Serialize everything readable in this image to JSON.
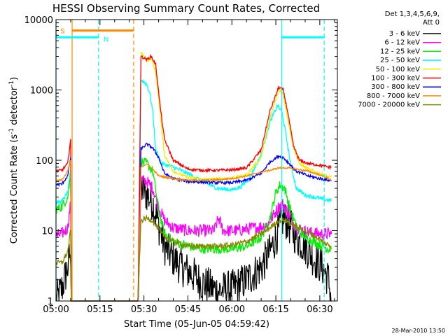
{
  "chart_data": {
    "type": "line",
    "title": "HESSI Observing Summary Count Rates, Corrected",
    "xlabel": "Start Time (05-Jun-05 04:59:42)",
    "ylabel_main": "Corrected Count Rate (s",
    "ylabel_sup1": "-1",
    "ylabel_mid": " detector",
    "ylabel_sup2": "-1",
    "ylabel_end": ")",
    "timestamp": "28-Mar-2010 13:50",
    "legend_header": [
      "Det 1,3,4,5,6,9,",
      "Att 0"
    ],
    "legend_placement": "right",
    "y_scale": "log",
    "ylim": [
      1,
      10000
    ],
    "xlim_minutes": [
      0,
      96
    ],
    "x_ticks": [
      {
        "m": 0,
        "label": "05:00"
      },
      {
        "m": 15,
        "label": "05:15"
      },
      {
        "m": 30,
        "label": "05:30"
      },
      {
        "m": 45,
        "label": "05:45"
      },
      {
        "m": 60,
        "label": "06:00"
      },
      {
        "m": 75,
        "label": "06:15"
      },
      {
        "m": 90,
        "label": "06:30"
      }
    ],
    "y_ticks": [
      {
        "v": 1,
        "label": "1"
      },
      {
        "v": 10,
        "label": "10"
      },
      {
        "v": 100,
        "label": "100"
      },
      {
        "v": 1000,
        "label": "1000"
      },
      {
        "v": 10000,
        "label": "10000"
      }
    ],
    "series": [
      {
        "name": "3 - 6 keV",
        "color": "#000000",
        "noise": 0.55,
        "points": [
          [
            0,
            1
          ],
          [
            2,
            1.5
          ],
          [
            4,
            3
          ],
          [
            4.8,
            5
          ],
          [
            5.2,
            1
          ],
          [
            28,
            1
          ],
          [
            29,
            40
          ],
          [
            31,
            33
          ],
          [
            33,
            25
          ],
          [
            35,
            12
          ],
          [
            37,
            6
          ],
          [
            40,
            4
          ],
          [
            43,
            3
          ],
          [
            46,
            2.5
          ],
          [
            50,
            1.8
          ],
          [
            55,
            1.4
          ],
          [
            60,
            1.5
          ],
          [
            65,
            2
          ],
          [
            70,
            3
          ],
          [
            73,
            5
          ],
          [
            76,
            10
          ],
          [
            77.5,
            15
          ],
          [
            79,
            13
          ],
          [
            82,
            8
          ],
          [
            85,
            6
          ],
          [
            88,
            4
          ],
          [
            91,
            3
          ],
          [
            93,
            2
          ],
          [
            94,
            1
          ]
        ]
      },
      {
        "name": "6 - 12 keV",
        "color": "#ff00ff",
        "noise": 0.18,
        "points": [
          [
            0,
            8.5
          ],
          [
            2,
            9
          ],
          [
            4,
            11
          ],
          [
            5,
            25
          ],
          [
            5.2,
            1
          ],
          [
            28,
            1
          ],
          [
            29,
            52
          ],
          [
            31,
            50
          ],
          [
            33,
            40
          ],
          [
            35,
            22
          ],
          [
            37,
            14
          ],
          [
            40,
            11
          ],
          [
            45,
            10
          ],
          [
            50,
            10
          ],
          [
            54,
            10
          ],
          [
            55.5,
            15
          ],
          [
            57,
            10
          ],
          [
            62,
            10
          ],
          [
            68,
            11
          ],
          [
            72,
            12
          ],
          [
            74,
            16
          ],
          [
            76,
            22
          ],
          [
            77.5,
            24
          ],
          [
            79,
            18
          ],
          [
            82,
            11
          ],
          [
            86,
            9.5
          ],
          [
            90,
            9
          ],
          [
            93,
            9
          ],
          [
            94,
            9
          ]
        ]
      },
      {
        "name": "12 - 25 keV",
        "color": "#00ee00",
        "noise": 0.14,
        "points": [
          [
            0,
            20
          ],
          [
            2,
            22
          ],
          [
            4,
            30
          ],
          [
            5,
            60
          ],
          [
            5.2,
            1
          ],
          [
            28,
            1
          ],
          [
            29,
            95
          ],
          [
            31,
            90
          ],
          [
            33,
            70
          ],
          [
            35,
            20
          ],
          [
            37,
            9
          ],
          [
            40,
            7
          ],
          [
            45,
            6
          ],
          [
            50,
            5.5
          ],
          [
            55,
            5.5
          ],
          [
            60,
            5.5
          ],
          [
            65,
            6
          ],
          [
            70,
            8
          ],
          [
            73,
            15
          ],
          [
            75,
            35
          ],
          [
            76.5,
            45
          ],
          [
            78,
            40
          ],
          [
            80,
            20
          ],
          [
            82,
            11
          ],
          [
            85,
            8
          ],
          [
            88,
            7
          ],
          [
            91,
            6
          ],
          [
            93,
            5.5
          ],
          [
            94,
            5.5
          ]
        ]
      },
      {
        "name": "25 - 50 keV",
        "color": "#00ffff",
        "noise": 0.06,
        "points": [
          [
            0,
            25
          ],
          [
            2,
            26
          ],
          [
            4,
            35
          ],
          [
            5,
            70
          ],
          [
            5.2,
            1
          ],
          [
            28,
            1
          ],
          [
            29,
            1400
          ],
          [
            31,
            1200
          ],
          [
            32,
            900
          ],
          [
            33,
            500
          ],
          [
            34,
            140
          ],
          [
            36,
            90
          ],
          [
            40,
            80
          ],
          [
            45,
            65
          ],
          [
            50,
            50
          ],
          [
            55,
            40
          ],
          [
            60,
            38
          ],
          [
            63,
            42
          ],
          [
            66,
            55
          ],
          [
            70,
            120
          ],
          [
            73,
            350
          ],
          [
            75.5,
            600
          ],
          [
            77,
            500
          ],
          [
            78,
            300
          ],
          [
            80,
            90
          ],
          [
            82,
            40
          ],
          [
            85,
            32
          ],
          [
            88,
            30
          ],
          [
            91,
            28
          ],
          [
            93,
            27
          ],
          [
            94,
            27
          ]
        ]
      },
      {
        "name": "50 - 100 keV",
        "color": "#eeee00",
        "noise": 0.04,
        "points": [
          [
            29,
            3400
          ],
          [
            31,
            2600
          ],
          [
            32.5,
            2800
          ],
          [
            34,
            1800
          ],
          [
            35.5,
            500
          ],
          [
            37,
            120
          ],
          [
            40,
            70
          ],
          [
            45,
            57
          ],
          [
            50,
            54
          ],
          [
            55,
            54
          ],
          [
            60,
            56
          ],
          [
            65,
            62
          ],
          [
            70,
            110
          ],
          [
            73,
            400
          ],
          [
            76,
            1000
          ],
          [
            77.5,
            900
          ],
          [
            79,
            400
          ],
          [
            81,
            150
          ],
          [
            83,
            90
          ],
          [
            86,
            75
          ],
          [
            90,
            65
          ],
          [
            93,
            58
          ],
          [
            94,
            58
          ]
        ]
      },
      {
        "name": "100 - 300 keV",
        "color": "#ff0000",
        "noise": 0.04,
        "points": [
          [
            0,
            70
          ],
          [
            2,
            72
          ],
          [
            4,
            90
          ],
          [
            5,
            200
          ],
          [
            5.2,
            1
          ],
          [
            28,
            1
          ],
          [
            29,
            3000
          ],
          [
            31,
            2700
          ],
          [
            32.5,
            3000
          ],
          [
            34,
            2300
          ],
          [
            35.5,
            600
          ],
          [
            37,
            200
          ],
          [
            40,
            100
          ],
          [
            45,
            75
          ],
          [
            50,
            72
          ],
          [
            55,
            72
          ],
          [
            60,
            73
          ],
          [
            65,
            78
          ],
          [
            70,
            140
          ],
          [
            73,
            500
          ],
          [
            76,
            1100
          ],
          [
            77.5,
            1000
          ],
          [
            79,
            500
          ],
          [
            81,
            160
          ],
          [
            83,
            100
          ],
          [
            86,
            90
          ],
          [
            90,
            85
          ],
          [
            93,
            80
          ],
          [
            94,
            80
          ]
        ]
      },
      {
        "name": "300 - 800 keV",
        "color": "#0000ff",
        "noise": 0.04,
        "points": [
          [
            0,
            45
          ],
          [
            2,
            46
          ],
          [
            4,
            60
          ],
          [
            5,
            110
          ],
          [
            5.2,
            1
          ],
          [
            28,
            1
          ],
          [
            29,
            145
          ],
          [
            31,
            170
          ],
          [
            33,
            150
          ],
          [
            35,
            110
          ],
          [
            37,
            65
          ],
          [
            40,
            55
          ],
          [
            45,
            50
          ],
          [
            50,
            49
          ],
          [
            55,
            48
          ],
          [
            60,
            48
          ],
          [
            65,
            52
          ],
          [
            70,
            65
          ],
          [
            73,
            95
          ],
          [
            76,
            115
          ],
          [
            77.5,
            110
          ],
          [
            79,
            95
          ],
          [
            82,
            70
          ],
          [
            86,
            60
          ],
          [
            90,
            55
          ],
          [
            93,
            52
          ],
          [
            94,
            51
          ]
        ]
      },
      {
        "name": "800 - 7000 keV",
        "color": "#ff8800",
        "noise": 0.025,
        "points": [
          [
            0,
            52
          ],
          [
            2,
            52
          ],
          [
            4,
            70
          ],
          [
            5,
            100
          ],
          [
            5.2,
            1
          ],
          [
            28,
            1
          ],
          [
            29,
            80
          ],
          [
            31,
            90
          ],
          [
            33,
            75
          ],
          [
            35,
            60
          ],
          [
            40,
            55
          ],
          [
            45,
            52
          ],
          [
            50,
            52
          ],
          [
            55,
            53
          ],
          [
            60,
            55
          ],
          [
            65,
            60
          ],
          [
            70,
            68
          ],
          [
            73,
            72
          ],
          [
            76,
            78
          ],
          [
            79,
            78
          ],
          [
            82,
            75
          ],
          [
            86,
            70
          ],
          [
            90,
            62
          ],
          [
            93,
            55
          ],
          [
            94,
            52
          ]
        ]
      },
      {
        "name": "7000 - 20000 keV",
        "color": "#888800",
        "noise": 0.08,
        "points": [
          [
            0,
            3.5
          ],
          [
            2,
            3.5
          ],
          [
            4,
            5
          ],
          [
            5,
            10
          ],
          [
            5.2,
            1
          ],
          [
            28,
            1
          ],
          [
            29,
            14
          ],
          [
            31,
            15
          ],
          [
            33,
            14
          ],
          [
            34,
            12
          ],
          [
            36,
            9
          ],
          [
            40,
            7
          ],
          [
            45,
            6
          ],
          [
            50,
            6
          ],
          [
            55,
            6
          ],
          [
            60,
            6.2
          ],
          [
            65,
            7
          ],
          [
            70,
            9
          ],
          [
            73,
            11
          ],
          [
            76,
            14
          ],
          [
            78,
            14
          ],
          [
            81,
            12
          ],
          [
            85,
            10
          ],
          [
            89,
            8
          ],
          [
            92,
            6.5
          ],
          [
            94,
            6
          ]
        ]
      }
    ],
    "attenuator_events": [
      {
        "m": 5.5,
        "color": "#ff8800",
        "style": "solid"
      },
      {
        "m": 26.5,
        "color": "#ff8800",
        "style": "dashed"
      }
    ],
    "night_events": [
      {
        "m": 0,
        "color": "#00ffff",
        "style": "solid"
      },
      {
        "m": 14.5,
        "color": "#00ffff",
        "style": "dashed"
      },
      {
        "m": 77,
        "color": "#00ffff",
        "style": "solid"
      },
      {
        "m": 91.5,
        "color": "#00ffff",
        "style": "dashed"
      }
    ],
    "flag_bars": [
      {
        "start": 0,
        "end": 14.5,
        "value": 5600,
        "color": "#00ffff",
        "label": ""
      },
      {
        "start": 5.5,
        "end": 26.5,
        "value": 7000,
        "color": "#ff8800",
        "label": "S"
      },
      {
        "start": 77,
        "end": 91.5,
        "value": 5600,
        "color": "#00ffff",
        "label": ""
      }
    ],
    "flag_labels": [
      {
        "m": 1.5,
        "value": 7000,
        "text": "S",
        "color": "#ff8800"
      },
      {
        "m": 16.2,
        "value": 5300,
        "text": "N",
        "color": "#00ffff"
      }
    ]
  }
}
